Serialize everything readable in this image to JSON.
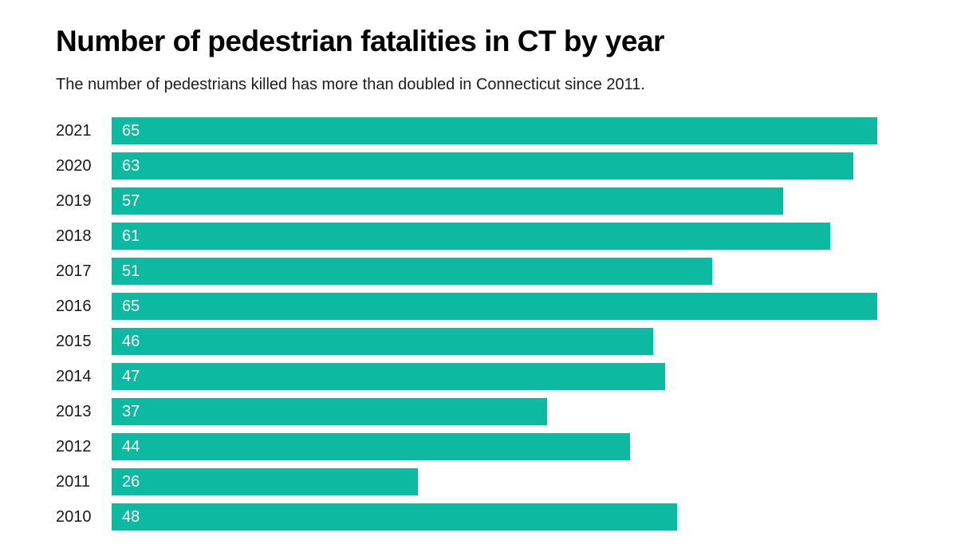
{
  "chart_data": {
    "type": "bar",
    "orientation": "horizontal",
    "title": "Number of pedestrian fatalities in CT by year",
    "subtitle": "The number of pedestrians killed has more than doubled in Connecticut since 2011.",
    "categories": [
      "2021",
      "2020",
      "2019",
      "2018",
      "2017",
      "2016",
      "2015",
      "2014",
      "2013",
      "2012",
      "2011",
      "2010"
    ],
    "values": [
      65,
      63,
      57,
      61,
      51,
      65,
      46,
      47,
      37,
      44,
      26,
      48
    ],
    "xlabel": "",
    "ylabel": "",
    "xlim": [
      0,
      65
    ],
    "grid": false,
    "legend": false,
    "value_labels": "inside-start",
    "bar_color": "#0eb9a1",
    "value_label_color": "#ffffff",
    "label_color": "#1a1a1a",
    "title_color": "#000000",
    "background_color": "#ffffff"
  }
}
